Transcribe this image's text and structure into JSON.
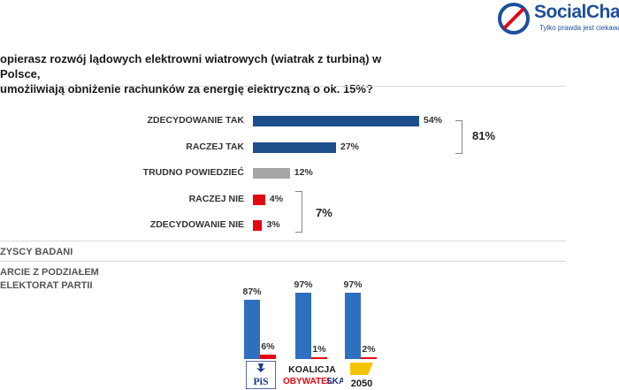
{
  "brand": {
    "name": "SocialChar",
    "tagline": "Tylko prawda jest ciekawa"
  },
  "question": "opierasz rozwój lądowych elektrowni wiatrowych (wiatrak z turbiną) w Polsce,\n umożliwiają obniżenie rachunków za energię elektryczną o ok. 15%?",
  "sections": {
    "all": "ZYSCY BADANI",
    "by_party": "ARCIE Z PODZIAŁEM\nELEKTORAT PARTII"
  },
  "aggregates": {
    "yes": "81%",
    "no": "7%"
  },
  "parties": {
    "pis": "PiS",
    "ko_line1": "KOALICJA",
    "ko_line2a": "OBYWATEL",
    "ko_line2b": "SKA",
    "p2050": "2050"
  },
  "colors": {
    "dark_blue": "#1f4e8c",
    "blue": "#2f6fc0",
    "grey": "#a6a6a6",
    "red": "#e30613",
    "agg_blue": "#2e75b6",
    "agg_red": "#e30613"
  },
  "chart_data": [
    {
      "type": "bar",
      "orientation": "horizontal",
      "categories": [
        "ZDECYDOWANIE TAK",
        "RACZEJ TAK",
        "TRUDNO POWIEDZIEĆ",
        "RACZEJ NIE",
        "ZDECYDOWANIE NIE"
      ],
      "values": [
        54,
        27,
        12,
        4,
        3
      ],
      "value_labels": [
        "54%",
        "27%",
        "12%",
        "4%",
        "3%"
      ]
    },
    {
      "type": "bar",
      "orientation": "vertical",
      "categories": [
        "PiS",
        "KOALICJA OBYWATELSKA",
        "2050"
      ],
      "series": [
        {
          "values": [
            87,
            97,
            97
          ],
          "value_labels": [
            "87%",
            "97%",
            "97%"
          ]
        },
        {
          "values": [
            6,
            1,
            2
          ],
          "value_labels": [
            "6%",
            "1%",
            "2%"
          ]
        }
      ]
    }
  ]
}
